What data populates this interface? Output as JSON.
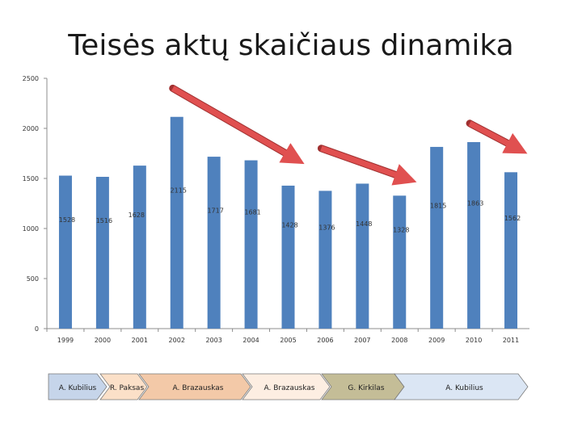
{
  "title": "Teisės aktų skaičiaus dinamika",
  "chart_data": {
    "type": "bar",
    "title": "Teisės aktų skaičiaus dinamika",
    "xlabel": "",
    "ylabel": "",
    "categories": [
      "1999",
      "2000",
      "2001",
      "2002",
      "2003",
      "2004",
      "2005",
      "2006",
      "2007",
      "2008",
      "2009",
      "2010",
      "2011"
    ],
    "series": [
      {
        "values": [
          1528,
          1516,
          1628,
          2115,
          1717,
          1681,
          1428,
          1376,
          1448,
          1328,
          1815,
          1863,
          1562
        ],
        "labels": [
          "1528",
          "1516",
          "1628",
          "2115",
          "1717",
          "1681",
          "1428",
          "1376",
          "1448",
          "1328",
          "1815",
          "1863",
          "1562"
        ],
        "color": "#4f81bd"
      }
    ],
    "ylim": [
      0,
      2500
    ],
    "yticks": [
      "0",
      "500",
      "1000",
      "1500",
      "2000",
      "2500"
    ],
    "grid": false,
    "legend": "none"
  },
  "arrows": [
    {
      "from_year": "2002",
      "from_value": 2400,
      "to_year": "2005",
      "to_value": 1700
    },
    {
      "from_year": "2006",
      "from_value": 1800,
      "to_year": "2008",
      "to_value": 1500
    },
    {
      "from_year": "2010",
      "from_value": 2050,
      "to_year": "2011",
      "to_value": 1800
    }
  ],
  "arrow_color": "#e05050",
  "timeline": [
    {
      "label": "A. Kubilius",
      "color": "#c6d5ea"
    },
    {
      "label": "R. Paksas",
      "color": "#fbe0c8"
    },
    {
      "label": "A. Brazauskas",
      "color": "#f3c9a8"
    },
    {
      "label": "A. Brazauskas",
      "color": "#fdeee2"
    },
    {
      "label": "G. Kirkilas",
      "color": "#c4bd97"
    },
    {
      "label": "A. Kubilius",
      "color": "#dbe6f4"
    }
  ]
}
